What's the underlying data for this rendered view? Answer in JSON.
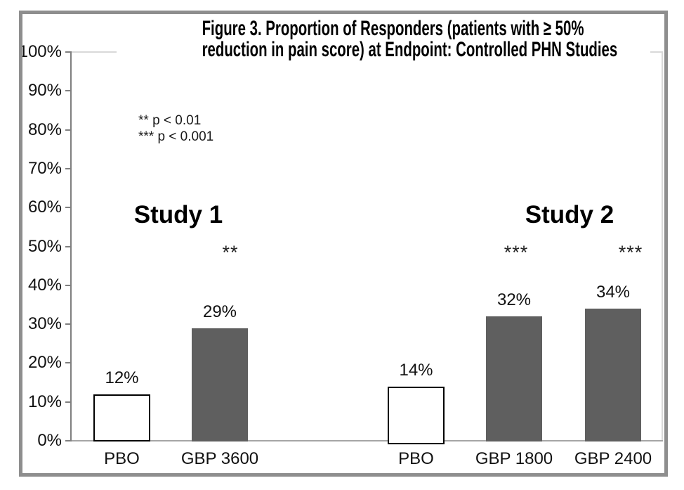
{
  "figure": {
    "title_line1": "Figure 3. Proportion of Responders (patients with ≥ 50%",
    "title_line2": "reduction in pain score) at Endpoint: Controlled PHN Studies"
  },
  "chart_data": {
    "type": "bar",
    "title": "Figure 3. Proportion of Responders (patients with ≥ 50% reduction in pain score) at Endpoint: Controlled PHN Studies",
    "xlabel": "",
    "ylabel": "",
    "ylim": [
      0,
      100
    ],
    "ytick_step": 10,
    "ytick_labels": [
      "0%",
      "10%",
      "20%",
      "30%",
      "40%",
      "50%",
      "60%",
      "70%",
      "80%",
      "90%",
      "100%"
    ],
    "grid": false,
    "legend": "none",
    "significance_notes": [
      "** p < 0.01",
      "*** p < 0.001"
    ],
    "groups": [
      {
        "name": "Study 1",
        "bars": [
          {
            "label": "PBO",
            "value": 12,
            "value_label": "12%",
            "style": "placebo",
            "significance": ""
          },
          {
            "label": "GBP 3600",
            "value": 29,
            "value_label": "29%",
            "style": "active",
            "significance": "**"
          }
        ]
      },
      {
        "name": "Study 2",
        "bars": [
          {
            "label": "PBO",
            "value": 14,
            "value_label": "14%",
            "style": "placebo",
            "significance": ""
          },
          {
            "label": "GBP 1800",
            "value": 32,
            "value_label": "32%",
            "style": "active",
            "significance": "***"
          },
          {
            "label": "GBP 2400",
            "value": 34,
            "value_label": "34%",
            "style": "active",
            "significance": "***"
          }
        ]
      }
    ],
    "colors": {
      "active_bar": "#5f5f5f",
      "placebo_bar_fill": "#ffffff",
      "placebo_bar_border": "#000000",
      "x_axis_line": "#a6a6a6",
      "y_axis_line": "#7f7f7f",
      "plot_border": "#d9d9d9",
      "frame_border": "#8e8e8e",
      "text": "#000000"
    }
  }
}
